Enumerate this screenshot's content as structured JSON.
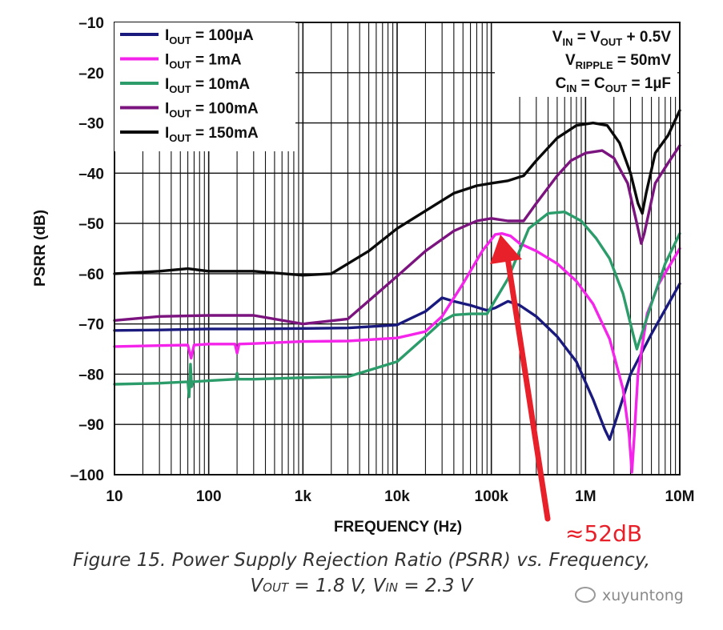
{
  "chart_data": {
    "type": "line",
    "x_scale": "log",
    "xlim": [
      10,
      10000000
    ],
    "ylim": [
      -100,
      -10
    ],
    "xlabel": "FREQUENCY (Hz)",
    "ylabel": "PSRR (dB)",
    "x_ticks": [
      {
        "value": 10,
        "label": "10"
      },
      {
        "value": 100,
        "label": "100"
      },
      {
        "value": 1000,
        "label": "1k"
      },
      {
        "value": 10000,
        "label": "10k"
      },
      {
        "value": 100000,
        "label": "100k"
      },
      {
        "value": 1000000,
        "label": "1M"
      },
      {
        "value": 10000000,
        "label": "10M"
      }
    ],
    "y_ticks": [
      {
        "value": -10,
        "label": "–10"
      },
      {
        "value": -20,
        "label": "–20"
      },
      {
        "value": -30,
        "label": "–30"
      },
      {
        "value": -40,
        "label": "–40"
      },
      {
        "value": -50,
        "label": "–50"
      },
      {
        "value": -60,
        "label": "–60"
      },
      {
        "value": -70,
        "label": "–70"
      },
      {
        "value": -80,
        "label": "–80"
      },
      {
        "value": -90,
        "label": "–90"
      },
      {
        "value": -100,
        "label": "–100"
      }
    ],
    "grid": true,
    "legend_position": "top-left",
    "series": [
      {
        "name": "I_OUT = 100µA",
        "legend_main": "I",
        "legend_sub": "OUT",
        "legend_rest": " = 100µA",
        "color": "#1a1a7e",
        "x": [
          10,
          30,
          100,
          300,
          1000,
          3000,
          10000,
          20000,
          30000,
          40000,
          60000,
          90000,
          110000,
          150000,
          200000,
          300000,
          500000,
          800000,
          1200000,
          1600000,
          1800000,
          2200000,
          3000000,
          5000000,
          10000000
        ],
        "y": [
          -71.3,
          -71.2,
          -71.0,
          -71.0,
          -70.9,
          -70.8,
          -70.2,
          -67.5,
          -64.8,
          -65.5,
          -66.3,
          -67.3,
          -66.8,
          -65.5,
          -66.3,
          -68.5,
          -72.5,
          -77.5,
          -85,
          -91,
          -93,
          -88,
          -80,
          -72,
          -62
        ]
      },
      {
        "name": "I_OUT = 1mA",
        "legend_main": "I",
        "legend_sub": "OUT",
        "legend_rest": " = 1mA",
        "color": "#f524ea",
        "x": [
          10,
          30,
          60,
          65,
          70,
          100,
          190,
          200,
          210,
          300,
          1000,
          3000,
          10000,
          20000,
          30000,
          50000,
          80000,
          110000,
          130000,
          160000,
          200000,
          300000,
          500000,
          800000,
          1200000,
          1800000,
          2500000,
          2900000,
          3100000,
          3300000,
          3600000,
          4500000,
          6000000,
          10000000
        ],
        "y": [
          -74.5,
          -74.3,
          -74.2,
          -76.8,
          -74.2,
          -74.0,
          -74.0,
          -75.8,
          -74.0,
          -73.9,
          -73.5,
          -73.4,
          -72.8,
          -71.5,
          -68.5,
          -62,
          -55.5,
          -52.2,
          -52.0,
          -52.5,
          -54,
          -55.5,
          -58,
          -61.5,
          -66,
          -73,
          -83,
          -92,
          -99.5,
          -92,
          -80,
          -68,
          -62,
          -55
        ]
      },
      {
        "name": "I_OUT = 10mA",
        "legend_main": "I",
        "legend_sub": "OUT",
        "legend_rest": " = 10mA",
        "color": "#2b9c6a",
        "x": [
          10,
          30,
          60,
          62,
          64,
          66,
          68,
          100,
          195,
          200,
          205,
          300,
          1000,
          3000,
          10000,
          20000,
          30000,
          40000,
          60000,
          90000,
          150000,
          250000,
          400000,
          600000,
          900000,
          1300000,
          1800000,
          2500000,
          3000000,
          3500000,
          5000000,
          7000000,
          10000000
        ],
        "y": [
          -82,
          -81.8,
          -81.5,
          -84.5,
          -78,
          -82.5,
          -81.5,
          -81.3,
          -81.0,
          -79.8,
          -81.0,
          -81.0,
          -80.7,
          -80.5,
          -77.5,
          -72.5,
          -69.5,
          -68.2,
          -68.0,
          -68.0,
          -61,
          -51,
          -48,
          -47.7,
          -49.5,
          -53,
          -57,
          -64,
          -70,
          -75,
          -66,
          -58,
          -52
        ]
      },
      {
        "name": "I_OUT = 100mA",
        "legend_main": "I",
        "legend_sub": "OUT",
        "legend_rest": " = 100mA",
        "color": "#7b147e",
        "x": [
          10,
          30,
          100,
          300,
          1000,
          3000,
          10000,
          20000,
          40000,
          70000,
          100000,
          150000,
          220000,
          300000,
          500000,
          700000,
          1000000,
          1500000,
          2000000,
          2800000,
          3500000,
          3900000,
          4200000,
          5500000,
          7500000,
          10000000
        ],
        "y": [
          -69.3,
          -68.5,
          -68.3,
          -68.3,
          -70.0,
          -69.0,
          -60.5,
          -55.5,
          -51.5,
          -49.5,
          -49.0,
          -49.5,
          -49.5,
          -46,
          -40.5,
          -37.5,
          -36.0,
          -35.5,
          -37,
          -42,
          -50,
          -54,
          -52,
          -42,
          -38,
          -34.5
        ]
      },
      {
        "name": "I_OUT = 150mA",
        "legend_main": "I",
        "legend_sub": "OUT",
        "legend_rest": " = 150mA",
        "color": "#0a0a0a",
        "x": [
          10,
          30,
          60,
          100,
          300,
          1000,
          2000,
          5000,
          10000,
          20000,
          40000,
          70000,
          100000,
          150000,
          220000,
          300000,
          500000,
          800000,
          1200000,
          1700000,
          2300000,
          3000000,
          3600000,
          4000000,
          4400000,
          5500000,
          7500000,
          10000000
        ],
        "y": [
          -60,
          -59.5,
          -59,
          -59.5,
          -59.5,
          -60.3,
          -60.0,
          -55.5,
          -51.0,
          -47.5,
          -44.0,
          -42.5,
          -42.0,
          -41.5,
          -40.5,
          -37.5,
          -33.0,
          -30.5,
          -30.0,
          -30.5,
          -34.0,
          -40,
          -46,
          -48,
          -44,
          -36,
          -32.5,
          -27.5
        ]
      }
    ],
    "conditions": [
      {
        "main1": "V",
        "sub1": "IN",
        "mid": " = V",
        "sub2": "OUT",
        "rest": " + 0.5V"
      },
      {
        "main1": "V",
        "sub1": "RIPPLE",
        "mid": " = 50mV",
        "sub2": "",
        "rest": ""
      },
      {
        "main1": "C",
        "sub1": "IN",
        "mid": " = C",
        "sub2": "OUT",
        "rest": " = 1µF"
      }
    ],
    "annotation": {
      "text": "≈52dB",
      "color": "#e8202a",
      "x": 130000,
      "y": -52
    }
  },
  "caption": {
    "line1": "Figure 15. Power Supply Rejection Ratio (PSRR) vs. Frequency,",
    "l2_v1": "V",
    "l2_sub1": "OUT",
    "l2_mid": " = 1.8 V, V",
    "l2_sub2": "IN",
    "l2_end": " = 2.3 V"
  },
  "watermark": {
    "text": "xuyuntong",
    "icon": "wechat-icon"
  }
}
